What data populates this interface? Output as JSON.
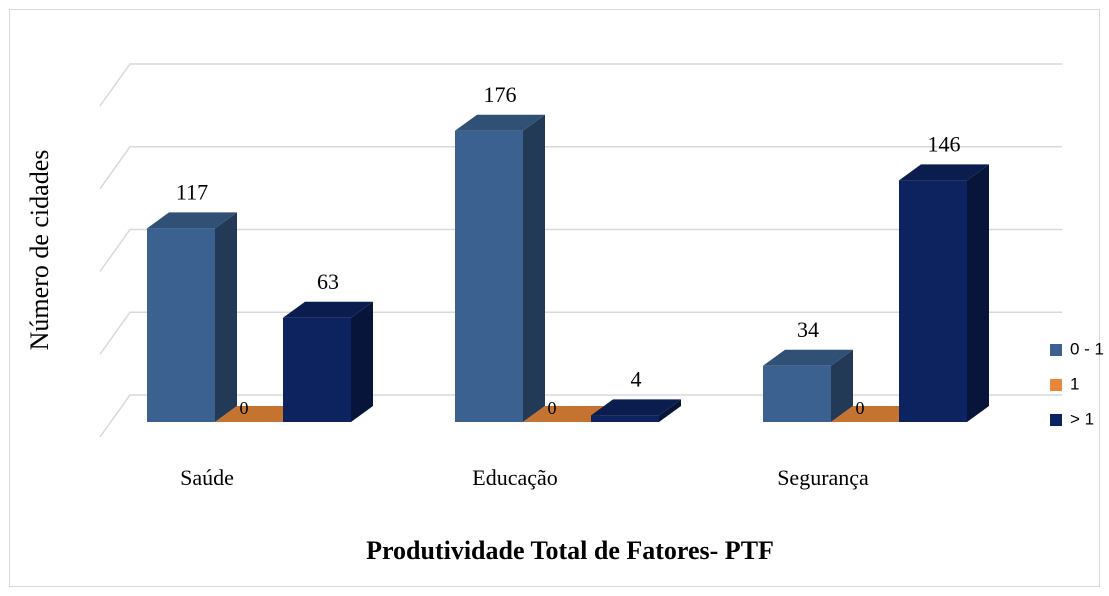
{
  "chart_data": {
    "type": "bar3d",
    "x_label": "Produtividade Total de Fatores- PTF",
    "y_label": "Número de cidades",
    "categories": [
      "Saúde",
      "Educação",
      "Segurança"
    ],
    "series": [
      {
        "name": "0 - 1",
        "color": "#3a6190",
        "values": [
          117,
          176,
          34
        ]
      },
      {
        "name": "1",
        "color": "#e8873a",
        "values": [
          0,
          0,
          0
        ]
      },
      {
        "name": "> 1",
        "color": "#0d2360",
        "values": [
          63,
          4,
          146
        ]
      }
    ],
    "ylim": [
      0,
      200
    ],
    "yticks": [
      0,
      50,
      100,
      150,
      200
    ],
    "grid": true,
    "legend": "right"
  }
}
